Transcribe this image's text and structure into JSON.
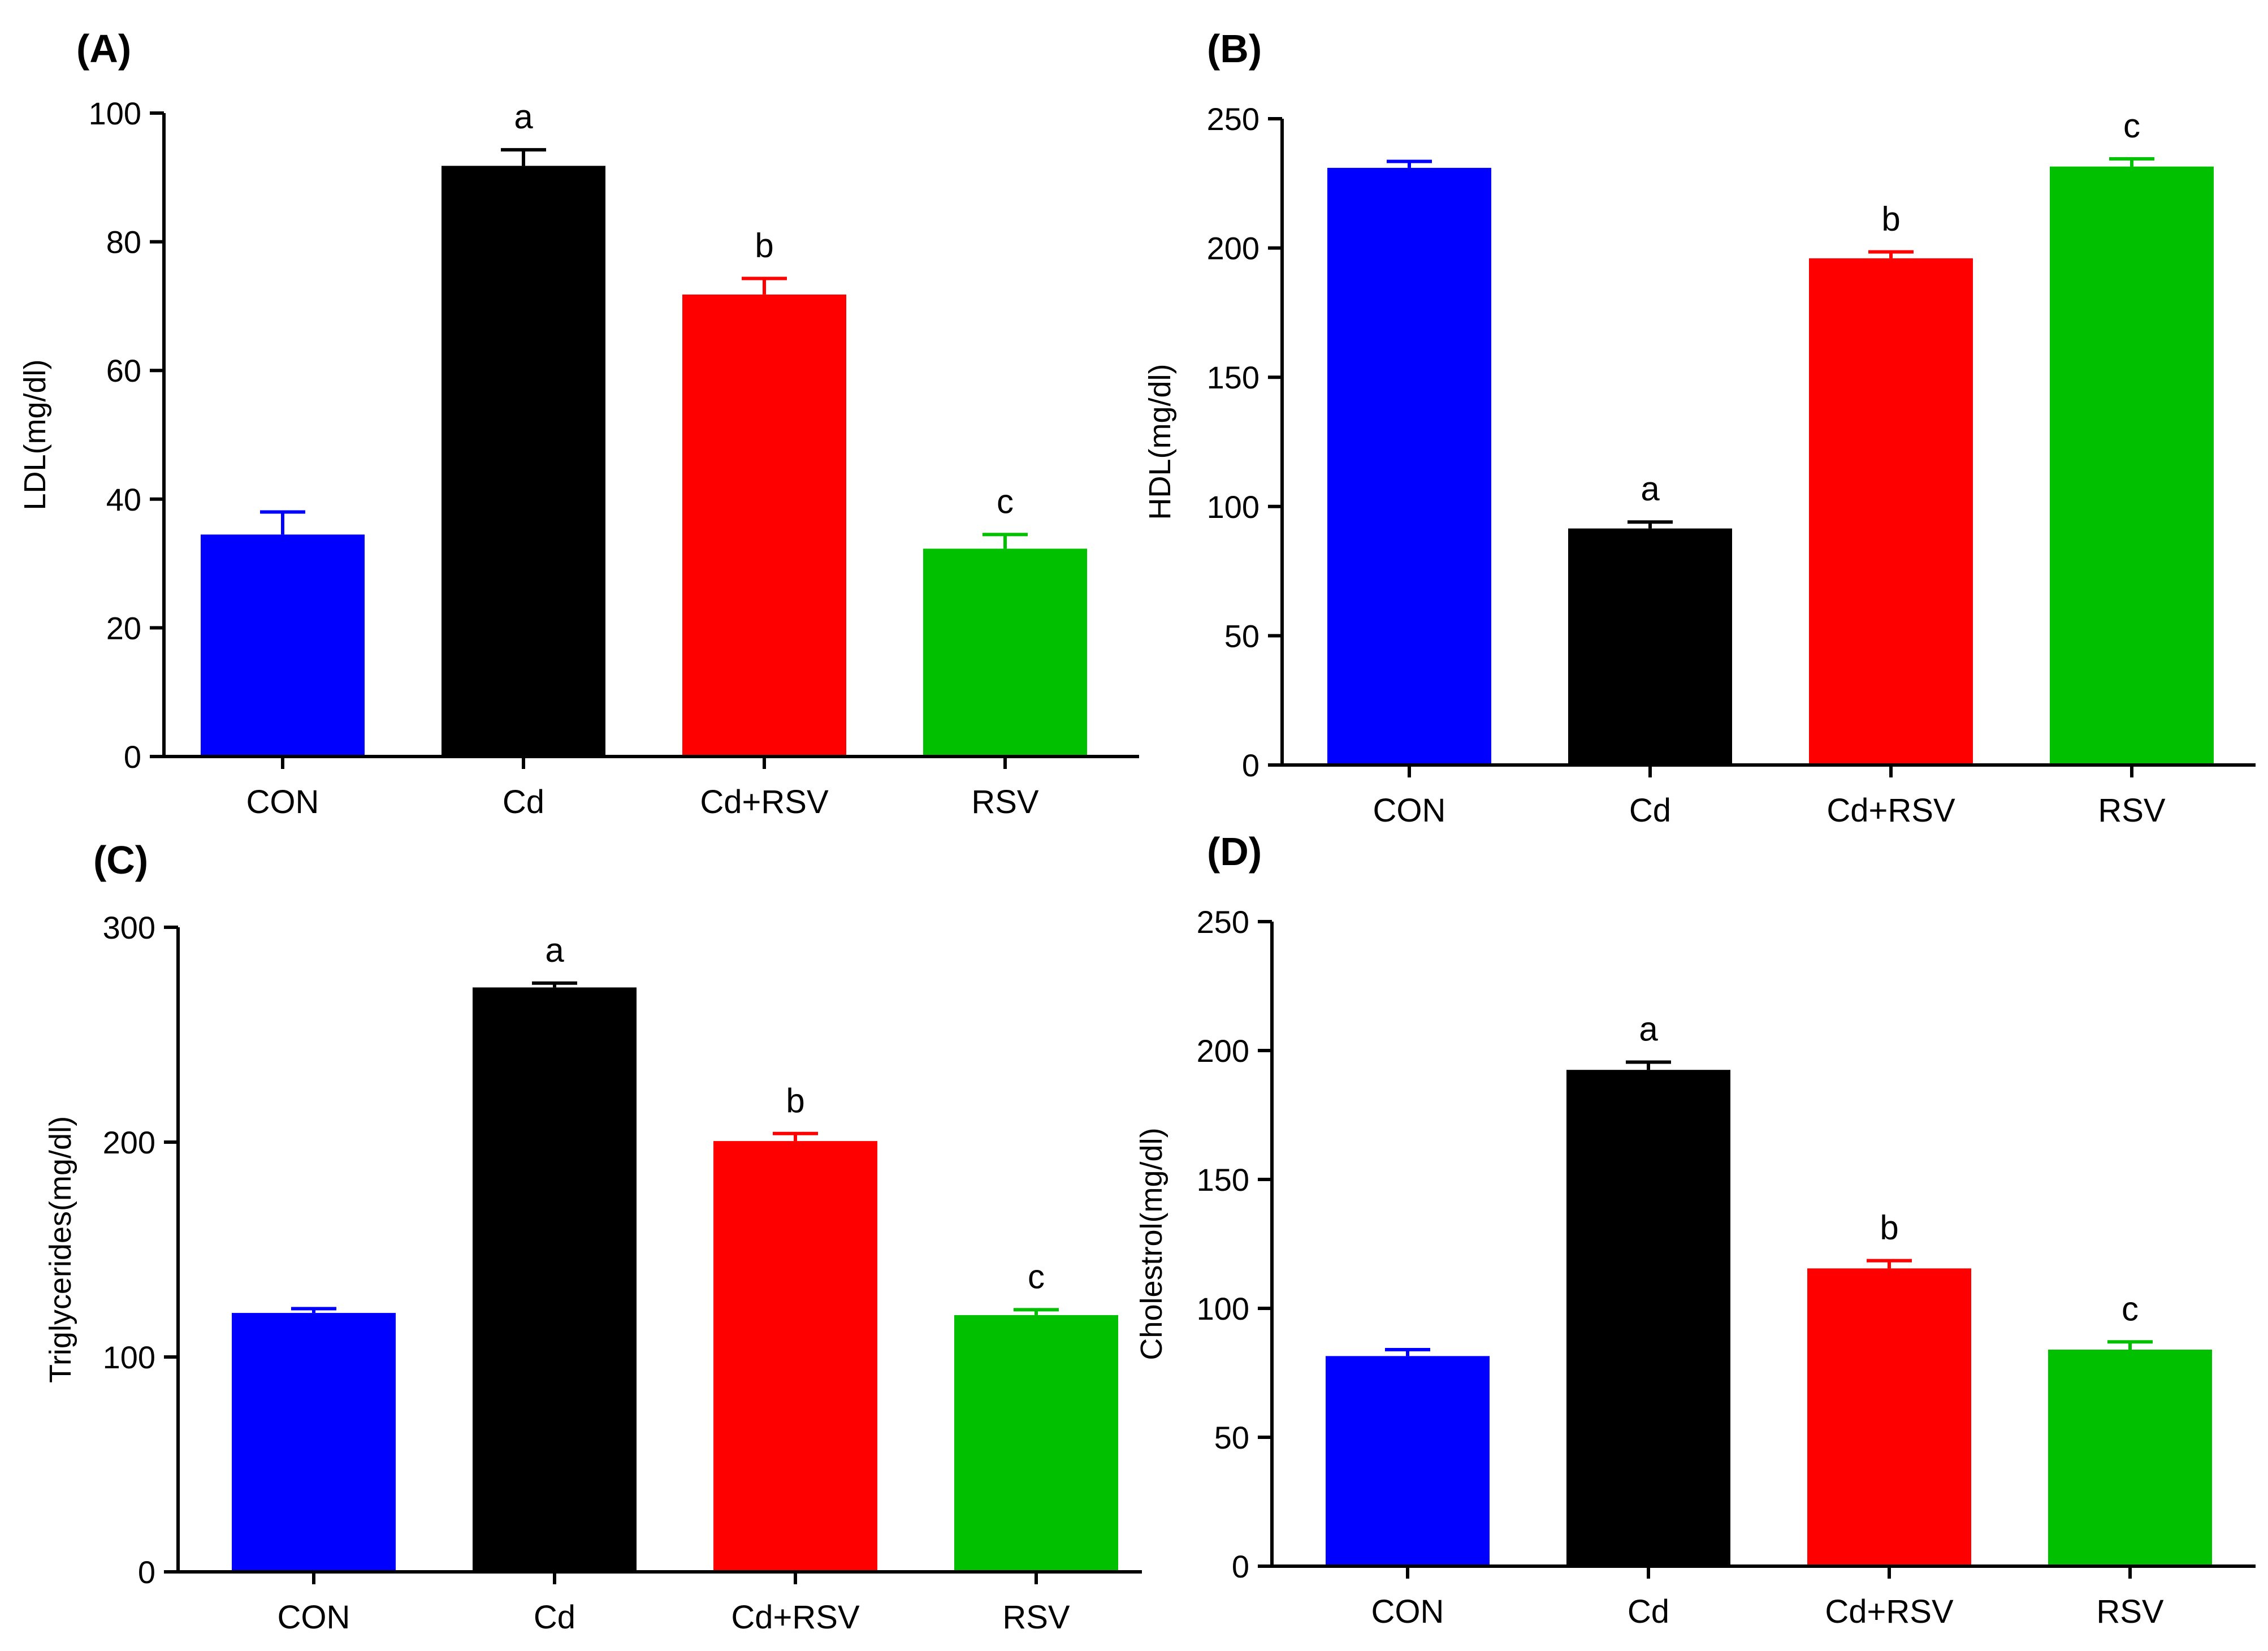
{
  "chart_data": [
    {
      "type": "bar",
      "panel": "(A)",
      "title": "",
      "xlabel": "",
      "ylabel": "LDL(mg/dl)",
      "ylim": [
        0,
        100
      ],
      "yticks": [
        0,
        20,
        40,
        60,
        80,
        100
      ],
      "categories": [
        "CON",
        "Cd",
        "Cd+RSV",
        "RSV"
      ],
      "values": [
        34.5,
        91.8,
        71.8,
        32.3
      ],
      "errors": [
        3.5,
        2.5,
        2.5,
        2.2
      ],
      "annotations": [
        "",
        "a",
        "b",
        "c"
      ],
      "colors": [
        "#0000ff",
        "#000000",
        "#ff0000",
        "#00c000"
      ],
      "grid": false
    },
    {
      "type": "bar",
      "panel": "(B)",
      "title": "",
      "xlabel": "",
      "ylabel": "HDL(mg/dl)",
      "ylim": [
        0,
        250
      ],
      "yticks": [
        0,
        50,
        100,
        150,
        200,
        250
      ],
      "categories": [
        "CON",
        "Cd",
        "Cd+RSV",
        "RSV"
      ],
      "values": [
        231,
        91.5,
        196,
        231.5
      ],
      "errors": [
        2.5,
        2.5,
        2.5,
        3.0
      ],
      "annotations": [
        "",
        "a",
        "b",
        "c"
      ],
      "colors": [
        "#0000ff",
        "#000000",
        "#ff0000",
        "#00c000"
      ],
      "grid": false
    },
    {
      "type": "bar",
      "panel": "(C)",
      "title": "",
      "xlabel": "",
      "ylabel": "Triglycerides(mg/dl)",
      "ylim": [
        0,
        300
      ],
      "yticks": [
        0,
        100,
        200,
        300
      ],
      "categories": [
        "CON",
        "Cd",
        "Cd+RSV",
        "RSV"
      ],
      "values": [
        120.5,
        272,
        200.5,
        119.5
      ],
      "errors": [
        2.0,
        2.0,
        3.5,
        2.5
      ],
      "annotations": [
        "",
        "a",
        "b",
        "c"
      ],
      "colors": [
        "#0000ff",
        "#000000",
        "#ff0000",
        "#00c000"
      ],
      "grid": false
    },
    {
      "type": "bar",
      "panel": "(D)",
      "title": "",
      "xlabel": "",
      "ylabel": "Cholestrol(mg/dl)",
      "ylim": [
        0,
        250
      ],
      "yticks": [
        0,
        50,
        100,
        150,
        200,
        250
      ],
      "categories": [
        "CON",
        "Cd",
        "Cd+RSV",
        "RSV"
      ],
      "values": [
        81.5,
        192.5,
        115.5,
        84
      ],
      "errors": [
        2.5,
        3.0,
        3.0,
        3.0
      ],
      "annotations": [
        "",
        "a",
        "b",
        "c"
      ],
      "colors": [
        "#0000ff",
        "#000000",
        "#ff0000",
        "#00c000"
      ],
      "grid": false
    }
  ]
}
